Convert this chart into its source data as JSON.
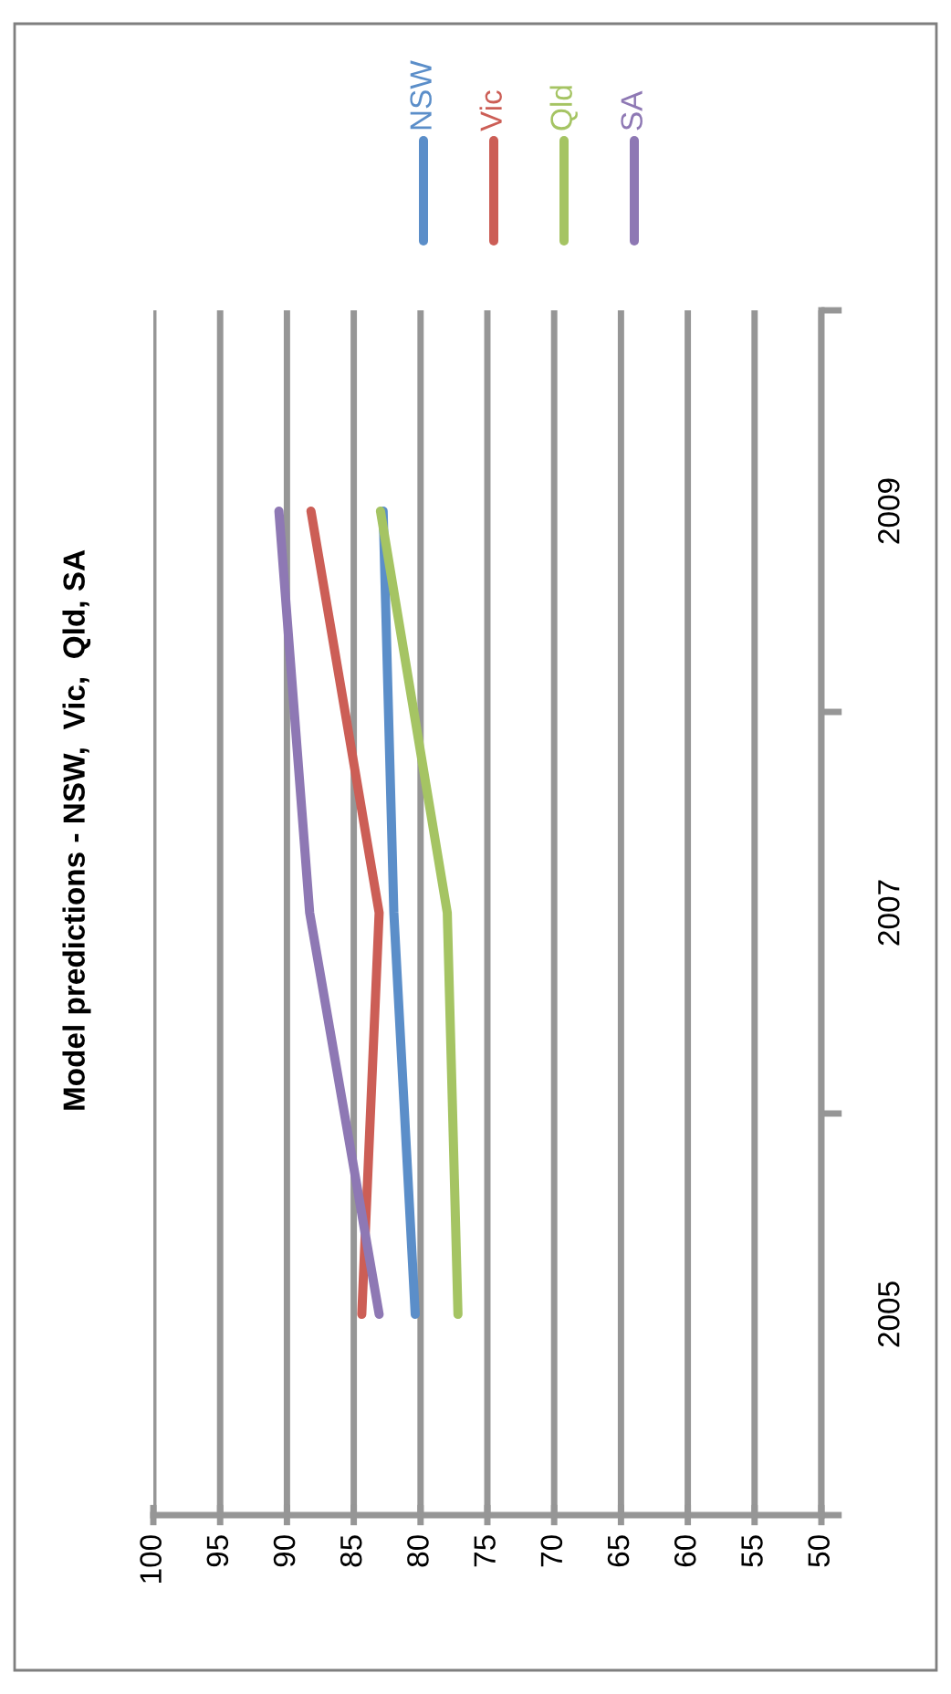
{
  "chart_data": {
    "type": "line",
    "title": "Model predictions - NSW,  Vic,  Qld, SA",
    "orientation": "horizontal",
    "categories": [
      "2009",
      "2007",
      "2005"
    ],
    "series": [
      {
        "name": "NSW",
        "color": "#5b8ec9",
        "values": [
          82.8,
          82.0,
          80.4
        ]
      },
      {
        "name": "Vic",
        "color": "#cc5e56",
        "values": [
          88.2,
          83.1,
          84.4
        ]
      },
      {
        "name": "Qld",
        "color": "#a5c463",
        "values": [
          83.0,
          78.0,
          77.2
        ]
      },
      {
        "name": "SA",
        "color": "#8e78b4",
        "values": [
          90.6,
          88.3,
          83.1
        ]
      }
    ],
    "xlim": [
      100,
      50
    ],
    "xticks": [
      100,
      95,
      90,
      85,
      80,
      75,
      70,
      65,
      60,
      55,
      50
    ],
    "grid": "x",
    "legend": "top",
    "marker": "none",
    "line_style": "solid"
  }
}
